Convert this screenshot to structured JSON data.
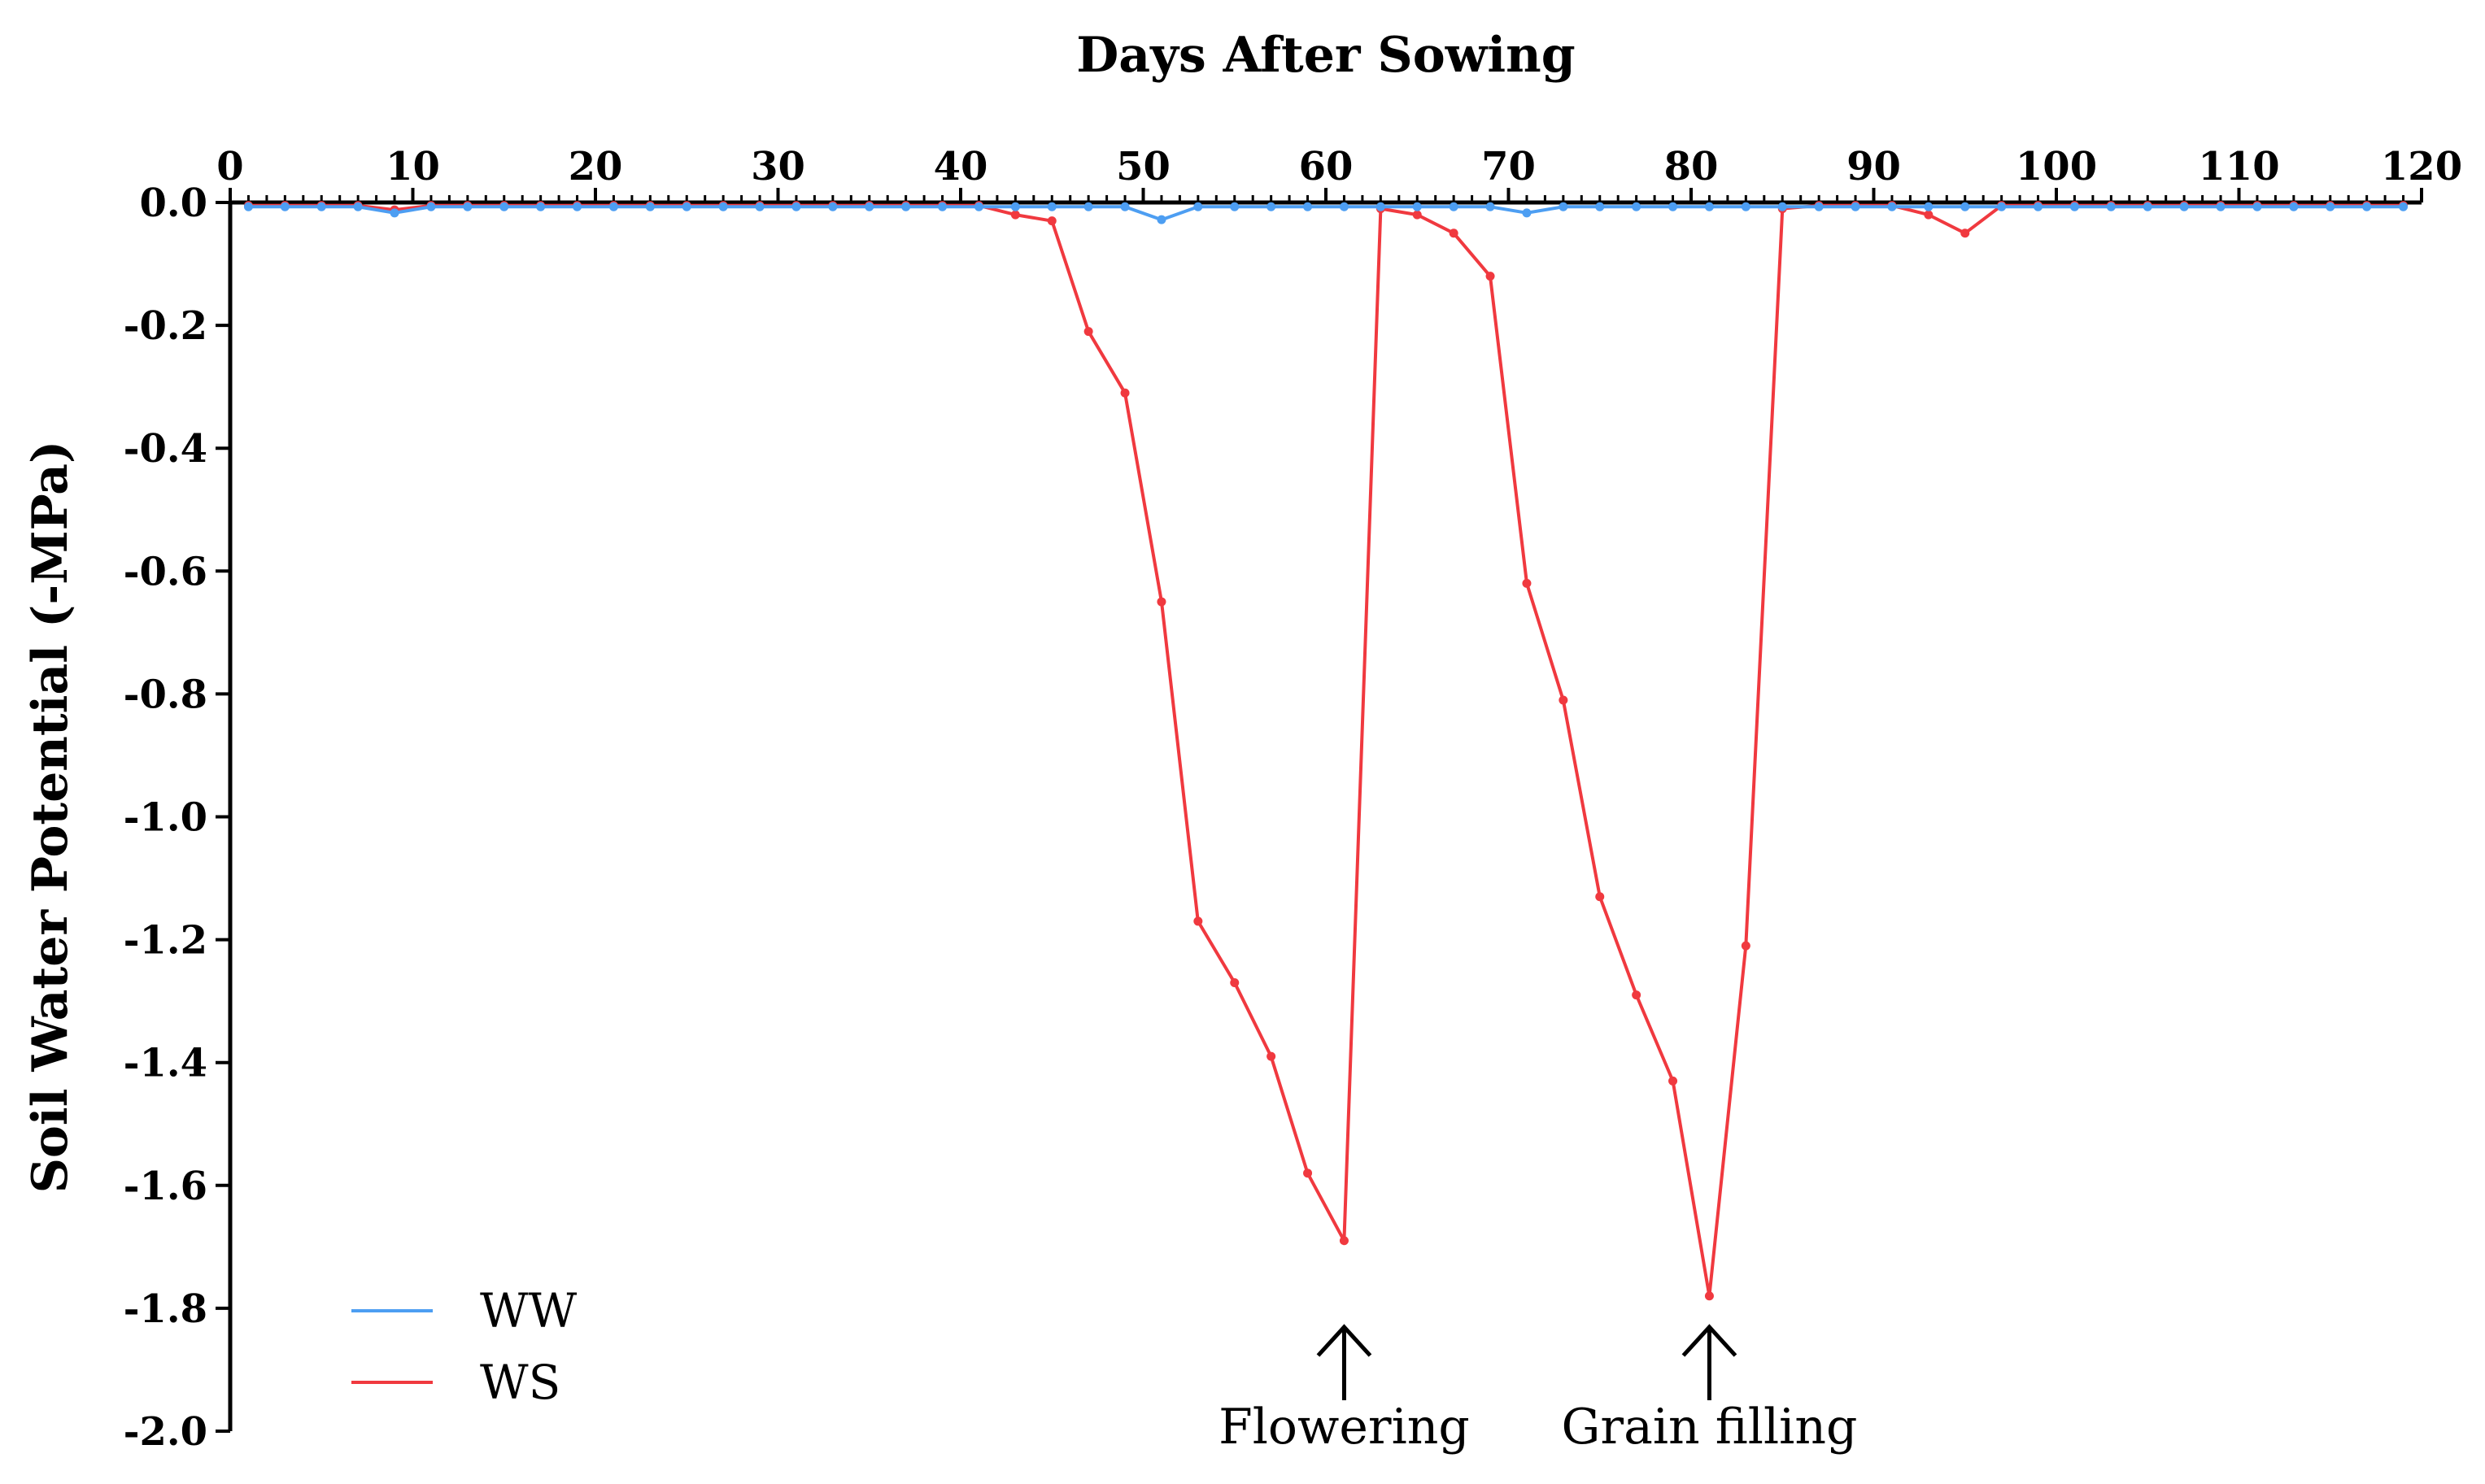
{
  "chart_data": {
    "type": "line",
    "title": "",
    "xlabel": "Days After Sowing",
    "ylabel": "Soil Water Potential (-MPa)",
    "xlim": [
      0,
      120
    ],
    "ylim": [
      -2.0,
      0.0
    ],
    "x_axis_position": "top",
    "grid": false,
    "legend_position": "bottom-left",
    "x_ticks": [
      "0",
      "10",
      "20",
      "30",
      "40",
      "50",
      "60",
      "70",
      "80",
      "90",
      "100",
      "110",
      "120"
    ],
    "x_tick_values": [
      0,
      10,
      20,
      30,
      40,
      50,
      60,
      70,
      80,
      90,
      100,
      110,
      120
    ],
    "y_ticks": [
      "0.0",
      "-0.2",
      "-0.4",
      "-0.6",
      "-0.8",
      "-1.0",
      "-1.2",
      "-1.4",
      "-1.6",
      "-1.8",
      "-2.0"
    ],
    "y_tick_values": [
      0.0,
      -0.2,
      -0.4,
      -0.6,
      -0.8,
      -1.0,
      -1.2,
      -1.4,
      -1.6,
      -1.8,
      -2.0
    ],
    "series": [
      {
        "name": "WW",
        "color": "#4d9ef2",
        "x": [
          1,
          3,
          5,
          7,
          9,
          11,
          13,
          15,
          17,
          19,
          21,
          23,
          25,
          27,
          29,
          31,
          33,
          35,
          37,
          39,
          41,
          43,
          45,
          47,
          49,
          51,
          53,
          55,
          57,
          59,
          61,
          63,
          65,
          67,
          69,
          71,
          73,
          75,
          77,
          79,
          81,
          83,
          85,
          87,
          89,
          91,
          93,
          95,
          97,
          99,
          101,
          103,
          105,
          107,
          109,
          111,
          113,
          115,
          117,
          119
        ],
        "values": [
          -0.007,
          -0.007,
          -0.007,
          -0.007,
          -0.017,
          -0.007,
          -0.007,
          -0.007,
          -0.007,
          -0.007,
          -0.007,
          -0.007,
          -0.007,
          -0.007,
          -0.007,
          -0.007,
          -0.007,
          -0.007,
          -0.007,
          -0.007,
          -0.007,
          -0.007,
          -0.007,
          -0.007,
          -0.007,
          -0.028,
          -0.007,
          -0.007,
          -0.007,
          -0.007,
          -0.007,
          -0.007,
          -0.007,
          -0.007,
          -0.007,
          -0.017,
          -0.007,
          -0.007,
          -0.007,
          -0.007,
          -0.007,
          -0.007,
          -0.007,
          -0.007,
          -0.007,
          -0.007,
          -0.007,
          -0.007,
          -0.007,
          -0.007,
          -0.007,
          -0.007,
          -0.007,
          -0.007,
          -0.007,
          -0.007,
          -0.007,
          -0.007,
          -0.007,
          -0.007
        ]
      },
      {
        "name": "WS",
        "color": "#f0393f",
        "x": [
          1,
          3,
          5,
          7,
          9,
          11,
          13,
          15,
          17,
          19,
          21,
          23,
          25,
          27,
          29,
          31,
          33,
          35,
          37,
          39,
          41,
          43,
          45,
          47,
          49,
          51,
          53,
          55,
          57,
          59,
          61,
          63,
          65,
          67,
          69,
          71,
          73,
          75,
          77,
          79,
          81,
          83,
          85,
          87,
          89,
          91,
          93,
          95,
          97,
          99,
          101,
          103,
          105,
          107,
          109,
          111,
          113,
          115,
          117,
          119
        ],
        "values": [
          -0.005,
          -0.005,
          -0.005,
          -0.005,
          -0.012,
          -0.005,
          -0.005,
          -0.005,
          -0.005,
          -0.005,
          -0.005,
          -0.005,
          -0.005,
          -0.005,
          -0.005,
          -0.005,
          -0.005,
          -0.005,
          -0.005,
          -0.005,
          -0.005,
          -0.02,
          -0.03,
          -0.21,
          -0.31,
          -0.65,
          -1.17,
          -1.27,
          -1.39,
          -1.58,
          -1.69,
          -0.01,
          -0.02,
          -0.05,
          -0.12,
          -0.62,
          -0.81,
          -1.13,
          -1.29,
          -1.43,
          -1.78,
          -1.21,
          -0.01,
          -0.005,
          -0.005,
          -0.005,
          -0.02,
          -0.05,
          -0.005,
          -0.005,
          -0.005,
          -0.005,
          -0.005,
          -0.005,
          -0.005,
          -0.005,
          -0.005,
          -0.005,
          -0.005,
          -0.005
        ]
      }
    ],
    "annotations": [
      {
        "label": "Flowering",
        "x": 61,
        "symbol": "↑"
      },
      {
        "label": "Grain filling",
        "x": 81,
        "symbol": "↑"
      }
    ]
  }
}
